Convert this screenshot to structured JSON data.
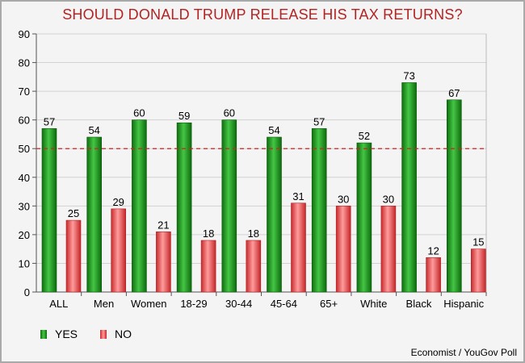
{
  "chart_data": {
    "type": "bar",
    "title": "SHOULD DONALD TRUMP RELEASE HIS TAX RETURNS?",
    "categories": [
      "ALL",
      "Men",
      "Women",
      "18-29",
      "30-44",
      "45-64",
      "65+",
      "White",
      "Black",
      "Hispanic"
    ],
    "series": [
      {
        "name": "YES",
        "values": [
          57,
          54,
          60,
          59,
          60,
          54,
          57,
          52,
          73,
          67
        ],
        "color": "#2e9e2e"
      },
      {
        "name": "NO",
        "values": [
          25,
          29,
          21,
          18,
          18,
          31,
          30,
          30,
          12,
          15
        ],
        "color": "#e8585a"
      }
    ],
    "ylim": [
      0,
      90
    ],
    "yticks": [
      0,
      10,
      20,
      30,
      40,
      50,
      60,
      70,
      80,
      90
    ],
    "reference_line": {
      "value": 50,
      "color": "#d62020",
      "style": "dashed"
    },
    "xlabel": "",
    "ylabel": "",
    "source": "Economist / YouGov Poll"
  }
}
